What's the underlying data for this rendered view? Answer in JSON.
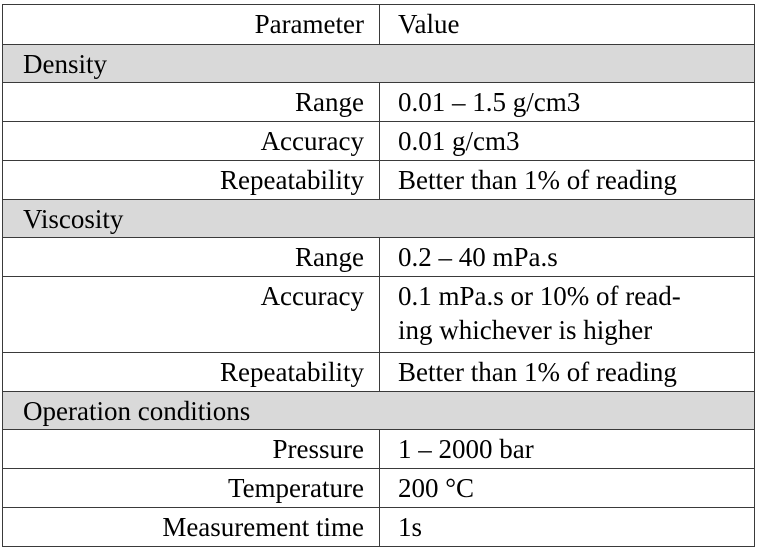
{
  "header": {
    "param": "Parameter",
    "value": "Value"
  },
  "density": {
    "title": "Density",
    "rows": [
      {
        "param": "Range",
        "value": "0.01 – 1.5 g/cm3"
      },
      {
        "param": "Accuracy",
        "value": "0.01 g/cm3"
      },
      {
        "param": "Repeatability",
        "value": "Better than 1% of reading"
      }
    ]
  },
  "viscosity": {
    "title": "Viscosity",
    "rows": [
      {
        "param": "Range",
        "value": "0.2 – 40 mPa.s"
      },
      {
        "param": "Accuracy",
        "value_line1": "0.1 mPa.s or 10% of read-",
        "value_line2": "ing whichever is higher"
      },
      {
        "param": "Repeatability",
        "value": "Better than 1% of reading"
      }
    ]
  },
  "operation": {
    "title": "Operation conditions",
    "rows": [
      {
        "param": "Pressure",
        "value": "1 – 2000 bar"
      },
      {
        "param": "Temperature",
        "value": "200 °C"
      },
      {
        "param": "Measurement time",
        "value": "1s"
      }
    ]
  }
}
